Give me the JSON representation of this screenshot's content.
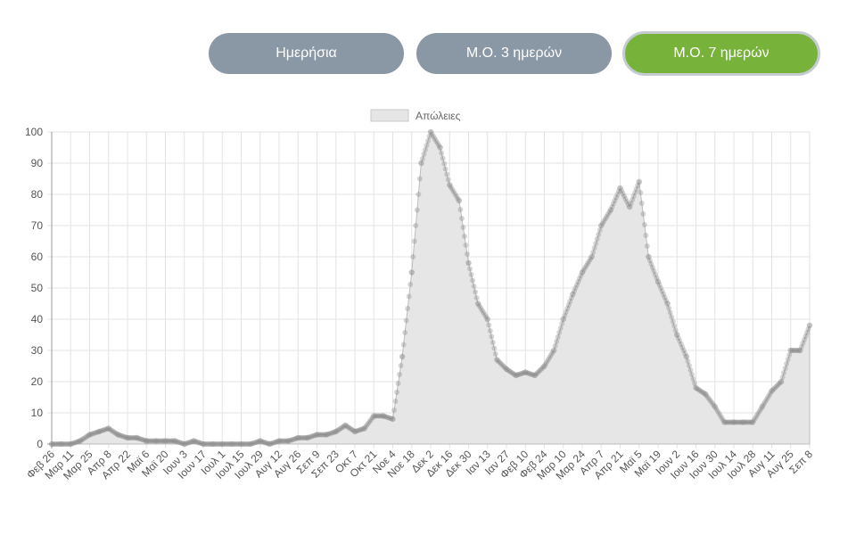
{
  "buttons": {
    "daily": "Ημερήσια",
    "avg3": "Μ.Ο. 3 ημερών",
    "avg7": "Μ.Ο. 7 ημερών",
    "active": "avg7",
    "active_color": "#77b23a",
    "inactive_color": "#8a97a4"
  },
  "chart_data": {
    "type": "area",
    "legend": {
      "label": "Απώλειες",
      "position": "top"
    },
    "ylim": [
      0,
      100
    ],
    "yticks": [
      0,
      10,
      20,
      30,
      40,
      50,
      60,
      70,
      80,
      90,
      100
    ],
    "grid": true,
    "fill_color": "#e6e6e6",
    "point_color": "#888888",
    "xticks": [
      "Φεβ 26",
      "Μαρ 11",
      "Μαρ 25",
      "Απρ 8",
      "Απρ 22",
      "Μαϊ 6",
      "Μαϊ 20",
      "Ιουν 3",
      "Ιουν 17",
      "Ιουλ 1",
      "Ιουλ 15",
      "Ιουλ 29",
      "Αυγ 12",
      "Αυγ 26",
      "Σεπ 9",
      "Σεπ 23",
      "Οκτ 7",
      "Οκτ 21",
      "Νοε 4",
      "Νοε 18",
      "Δεκ 2",
      "Δεκ 16",
      "Δεκ 30",
      "Ιαν 13",
      "Ιαν 27",
      "Φεβ 10",
      "Φεβ 24",
      "Μαρ 10",
      "Μαρ 24",
      "Απρ 7",
      "Απρ 21",
      "Μαϊ 5",
      "Μαϊ 19",
      "Ιουν 2",
      "Ιουν 16",
      "Ιουν 30",
      "Ιουλ 14",
      "Ιουλ 28",
      "Αυγ 11",
      "Αυγ 25",
      "Σεπ 8"
    ],
    "x": [
      "Φεβ 26",
      "Μαρ 4",
      "Μαρ 11",
      "Μαρ 18",
      "Μαρ 25",
      "Απρ 1",
      "Απρ 8",
      "Απρ 15",
      "Απρ 22",
      "Απρ 29",
      "Μαϊ 6",
      "Μαϊ 13",
      "Μαϊ 20",
      "Μαϊ 27",
      "Ιουν 3",
      "Ιουν 10",
      "Ιουν 17",
      "Ιουν 24",
      "Ιουλ 1",
      "Ιουλ 8",
      "Ιουλ 15",
      "Ιουλ 22",
      "Ιουλ 29",
      "Αυγ 5",
      "Αυγ 12",
      "Αυγ 19",
      "Αυγ 26",
      "Σεπ 2",
      "Σεπ 9",
      "Σεπ 16",
      "Σεπ 23",
      "Σεπ 30",
      "Οκτ 7",
      "Οκτ 14",
      "Οκτ 21",
      "Οκτ 28",
      "Νοε 4",
      "Νοε 11",
      "Νοε 18",
      "Νοε 25",
      "Δεκ 2",
      "Δεκ 9",
      "Δεκ 16",
      "Δεκ 23",
      "Δεκ 30",
      "Ιαν 6",
      "Ιαν 13",
      "Ιαν 20",
      "Ιαν 27",
      "Φεβ 3",
      "Φεβ 10",
      "Φεβ 17",
      "Φεβ 24",
      "Μαρ 3",
      "Μαρ 10",
      "Μαρ 17",
      "Μαρ 24",
      "Μαρ 31",
      "Απρ 7",
      "Απρ 14",
      "Απρ 21",
      "Απρ 28",
      "Μαϊ 5",
      "Μαϊ 12",
      "Μαϊ 19",
      "Μαϊ 26",
      "Ιουν 2",
      "Ιουν 9",
      "Ιουν 16",
      "Ιουν 23",
      "Ιουν 30",
      "Ιουλ 7",
      "Ιουλ 14",
      "Ιουλ 21",
      "Ιουλ 28",
      "Αυγ 4",
      "Αυγ 11",
      "Αυγ 18",
      "Αυγ 25",
      "Σεπ 1",
      "Σεπ 8"
    ],
    "values": [
      0,
      0,
      0,
      1,
      3,
      4,
      5,
      3,
      2,
      2,
      1,
      1,
      1,
      1,
      0,
      1,
      0,
      0,
      0,
      0,
      0,
      0,
      1,
      0,
      1,
      1,
      2,
      2,
      3,
      3,
      4,
      6,
      4,
      5,
      9,
      9,
      8,
      28,
      55,
      90,
      100,
      95,
      83,
      78,
      58,
      45,
      40,
      27,
      24,
      22,
      23,
      22,
      25,
      30,
      40,
      48,
      55,
      60,
      70,
      75,
      82,
      76,
      84,
      60,
      52,
      45,
      35,
      28,
      18,
      16,
      12,
      7,
      7,
      7,
      7,
      12,
      17,
      20,
      30,
      30,
      38
    ]
  }
}
